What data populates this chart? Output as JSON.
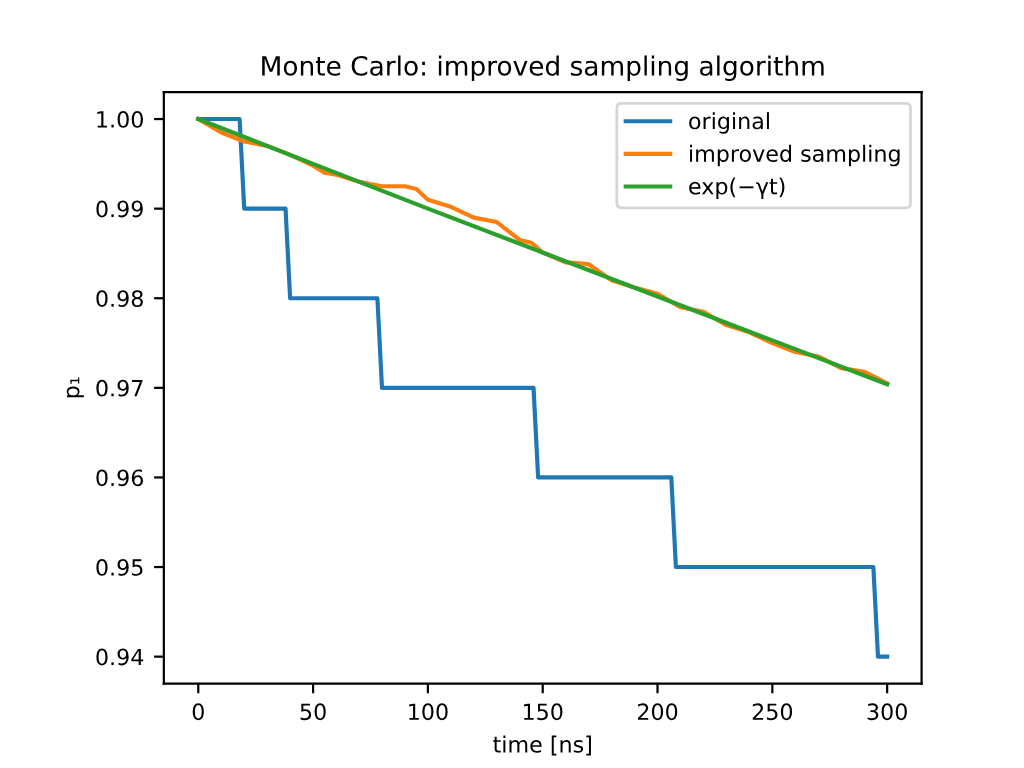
{
  "chart_data": {
    "type": "line",
    "title": "Monte Carlo: improved sampling algorithm",
    "xlabel": "time [ns]",
    "ylabel": "p₁",
    "xlim": [
      -15,
      315
    ],
    "xticks": [
      0,
      50,
      100,
      150,
      200,
      250,
      300
    ],
    "ylim": [
      0.937,
      1.003
    ],
    "yticks": [
      0.94,
      0.95,
      0.96,
      0.97,
      0.98,
      0.99,
      {
        "value": 1.0,
        "label": "1.00"
      }
    ],
    "grid": false,
    "legend": "top right",
    "series": [
      {
        "name": "original",
        "color": "#1f77b4",
        "x": [
          0,
          18,
          20,
          38,
          40,
          78,
          80,
          146,
          148,
          206,
          208,
          294,
          296,
          300
        ],
        "values": [
          1.0,
          1.0,
          0.99,
          0.99,
          0.98,
          0.98,
          0.97,
          0.97,
          0.96,
          0.96,
          0.95,
          0.95,
          0.94,
          0.94
        ]
      },
      {
        "name": "improved sampling",
        "color": "#ff7f0e",
        "x": [
          0,
          10,
          20,
          30,
          40,
          50,
          55,
          60,
          70,
          80,
          90,
          95,
          100,
          110,
          120,
          130,
          140,
          145,
          150,
          160,
          170,
          180,
          190,
          200,
          210,
          220,
          230,
          240,
          250,
          260,
          270,
          280,
          290,
          300
        ],
        "values": [
          1.0,
          0.9985,
          0.9975,
          0.997,
          0.996,
          0.9948,
          0.994,
          0.9938,
          0.993,
          0.9925,
          0.9925,
          0.9922,
          0.991,
          0.9902,
          0.989,
          0.9885,
          0.9865,
          0.9862,
          0.9851,
          0.984,
          0.9838,
          0.982,
          0.9812,
          0.9805,
          0.979,
          0.9785,
          0.977,
          0.9762,
          0.975,
          0.974,
          0.9735,
          0.9722,
          0.9718,
          0.9705
        ]
      },
      {
        "name": "exp(−γt)",
        "color": "#2ca02c",
        "x": [
          0,
          50,
          100,
          150,
          200,
          250,
          300
        ],
        "values": [
          1.0,
          0.995,
          0.99,
          0.9851,
          0.9802,
          0.9753,
          0.9704
        ]
      }
    ]
  }
}
